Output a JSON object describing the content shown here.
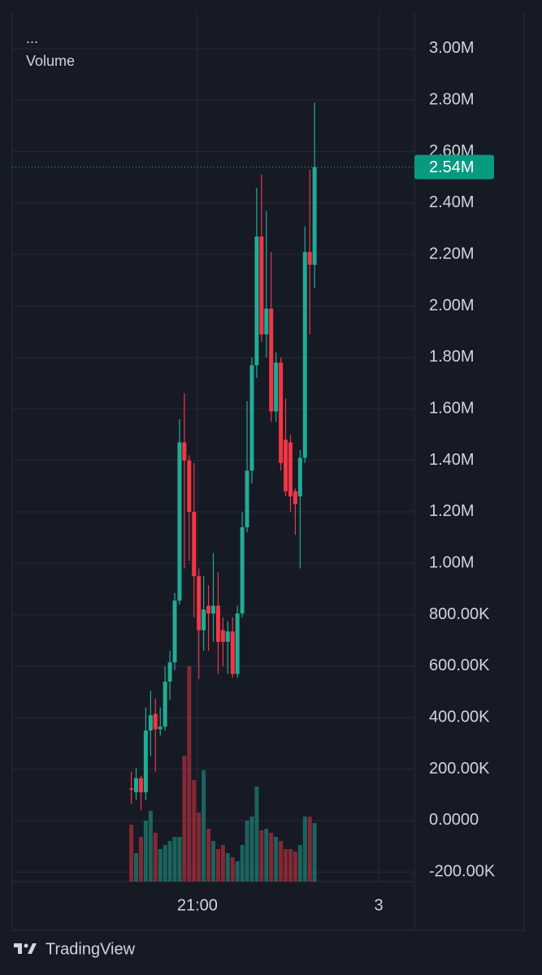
{
  "chart_data": {
    "type": "candlestick",
    "title": "...",
    "subtitle": "Volume",
    "up_color": "#22ab94",
    "down_color": "#f23645",
    "categories": [
      null,
      null,
      null,
      null,
      null,
      null,
      null,
      null,
      null,
      null,
      null,
      null,
      null,
      null,
      null,
      null,
      null,
      null,
      null,
      null,
      null,
      null,
      null,
      null,
      null,
      null,
      null,
      null,
      null,
      null,
      null,
      null,
      null,
      null,
      null,
      null,
      null,
      null,
      null
    ],
    "open": [
      125000,
      110000,
      165000,
      110000,
      350000,
      415000,
      355000,
      365000,
      540000,
      615000,
      855000,
      1470000,
      1400000,
      1200000,
      950000,
      740000,
      835000,
      805000,
      835000,
      740000,
      695000,
      735000,
      570000,
      805000,
      1140000,
      1360000,
      1770000,
      2270000,
      1890000,
      1990000,
      1590000,
      1780000,
      1480000,
      1470000,
      1280000,
      1260000,
      1410000,
      2210000,
      2160000
    ],
    "high": [
      190000,
      205000,
      175000,
      440000,
      505000,
      475000,
      440000,
      600000,
      660000,
      885000,
      1560000,
      1660000,
      1420000,
      1390000,
      980000,
      950000,
      915000,
      1040000,
      965000,
      790000,
      775000,
      790000,
      835000,
      1200000,
      1630000,
      1800000,
      2460000,
      2510000,
      2370000,
      2210000,
      1820000,
      1800000,
      1640000,
      1500000,
      1290000,
      1440000,
      2310000,
      2530000,
      2790000
    ],
    "low": [
      65000,
      80000,
      40000,
      80000,
      250000,
      190000,
      330000,
      350000,
      470000,
      585000,
      840000,
      980000,
      1010000,
      790000,
      550000,
      660000,
      660000,
      695000,
      570000,
      600000,
      570000,
      555000,
      555000,
      790000,
      1120000,
      1310000,
      1720000,
      1860000,
      1800000,
      1550000,
      1550000,
      1360000,
      1260000,
      1200000,
      1110000,
      980000,
      1390000,
      1890000,
      2070000
    ],
    "close": [
      120000,
      165000,
      110000,
      350000,
      410000,
      355000,
      365000,
      540000,
      615000,
      855000,
      1470000,
      1400000,
      1200000,
      950000,
      740000,
      820000,
      805000,
      835000,
      695000,
      695000,
      735000,
      570000,
      805000,
      1140000,
      1360000,
      1770000,
      2270000,
      1890000,
      1990000,
      1590000,
      1780000,
      1390000,
      1280000,
      1260000,
      1230000,
      1410000,
      2210000,
      2160000,
      2540000
    ],
    "volume": [
      70,
      35,
      55,
      75,
      87,
      60,
      40,
      45,
      50,
      55,
      55,
      155,
      265,
      125,
      85,
      137,
      65,
      50,
      40,
      45,
      35,
      30,
      25,
      45,
      75,
      80,
      117,
      63,
      65,
      60,
      55,
      50,
      40,
      40,
      37,
      45,
      80,
      80,
      72
    ],
    "volume_ylim": [
      0,
      270
    ],
    "last_price": {
      "value": 2540000,
      "label": "2.54M"
    },
    "ylim": [
      -237000,
      3142000
    ],
    "yticks": [
      {
        "value": 3000000,
        "label": "3.00M"
      },
      {
        "value": 2800000,
        "label": "2.80M"
      },
      {
        "value": 2600000,
        "label": "2.60M"
      },
      {
        "value": 2400000,
        "label": "2.40M"
      },
      {
        "value": 2200000,
        "label": "2.20M"
      },
      {
        "value": 2000000,
        "label": "2.00M"
      },
      {
        "value": 1800000,
        "label": "1.80M"
      },
      {
        "value": 1600000,
        "label": "1.60M"
      },
      {
        "value": 1400000,
        "label": "1.40M"
      },
      {
        "value": 1200000,
        "label": "1.20M"
      },
      {
        "value": 1000000,
        "label": "1.00M"
      },
      {
        "value": 800000,
        "label": "800.00K"
      },
      {
        "value": 600000,
        "label": "600.00K"
      },
      {
        "value": 400000,
        "label": "400.00K"
      },
      {
        "value": 200000,
        "label": "200.00K"
      },
      {
        "value": 0,
        "label": "0.0000"
      },
      {
        "value": -200000,
        "label": "-200.00K"
      }
    ],
    "xlim": [
      -24.7,
      58.7
    ],
    "xticks": [
      {
        "value": 13.7,
        "label": "21:00"
      },
      {
        "value": 51.3,
        "label": "3"
      }
    ],
    "grid": true,
    "brand": "TradingView"
  }
}
